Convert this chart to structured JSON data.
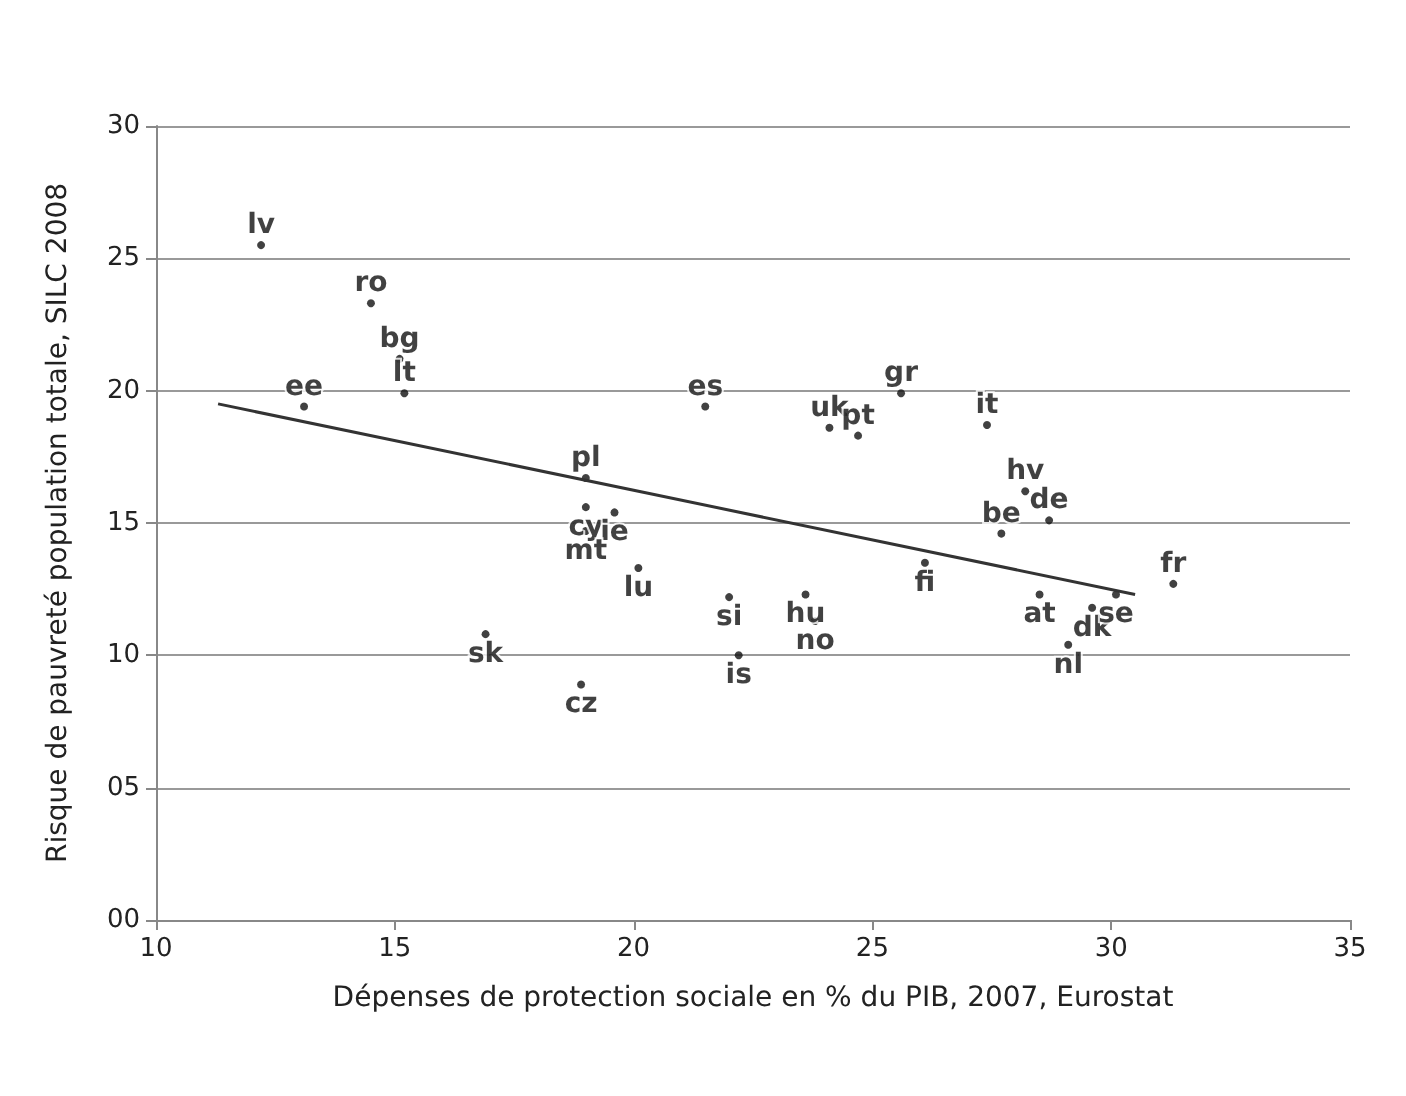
{
  "chart_data": {
    "type": "scatter",
    "xlabel": "Dépenses de protection sociale en % du PIB, 2007, Eurostat",
    "ylabel": "Risque de pauvreté population totale, SILC 2008",
    "xlim": [
      10,
      35
    ],
    "xticks": [
      10,
      15,
      20,
      25,
      30,
      35
    ],
    "ylim": [
      0,
      30
    ],
    "yticks": [
      {
        "value": 0,
        "label": "00"
      },
      {
        "value": 5,
        "label": "05"
      },
      10,
      15,
      20,
      25,
      30
    ],
    "grid": "y",
    "series": [
      {
        "color": "#111111",
        "marker": "circle",
        "x": [
          12.2,
          14.5,
          15.1,
          15.2,
          13.1,
          21.5,
          25.6,
          24.1,
          24.7,
          27.4,
          28.2,
          28.7,
          27.7,
          26.1,
          19.0,
          19.0,
          19.6,
          19.0,
          20.1,
          22.0,
          23.6,
          23.8,
          22.2,
          16.9,
          18.9,
          28.5,
          29.6,
          30.1,
          29.1,
          31.3
        ],
        "values": [
          25.5,
          23.3,
          21.2,
          19.9,
          19.4,
          19.4,
          19.9,
          18.6,
          18.3,
          18.7,
          16.2,
          15.1,
          14.6,
          13.5,
          16.7,
          15.6,
          15.4,
          14.7,
          13.3,
          12.2,
          12.3,
          11.3,
          10.0,
          10.8,
          8.9,
          12.3,
          11.8,
          12.3,
          10.4,
          12.7
        ],
        "value_labels": [
          "lv",
          "ro",
          "bg",
          "lt",
          "ee",
          "es",
          "gr",
          "uk",
          "pt",
          "it",
          "hv",
          "de",
          "be",
          "fi",
          "pl",
          "cy",
          "ie",
          "mt",
          "lu",
          "si",
          "hu",
          "no",
          "is",
          "sk",
          "cz",
          "at",
          "dk",
          "se",
          "nl",
          "fr"
        ]
      },
      {
        "type": "line",
        "color": "#333333",
        "x": [
          11.3,
          30.5
        ],
        "values": [
          19.5,
          12.3
        ]
      }
    ]
  }
}
